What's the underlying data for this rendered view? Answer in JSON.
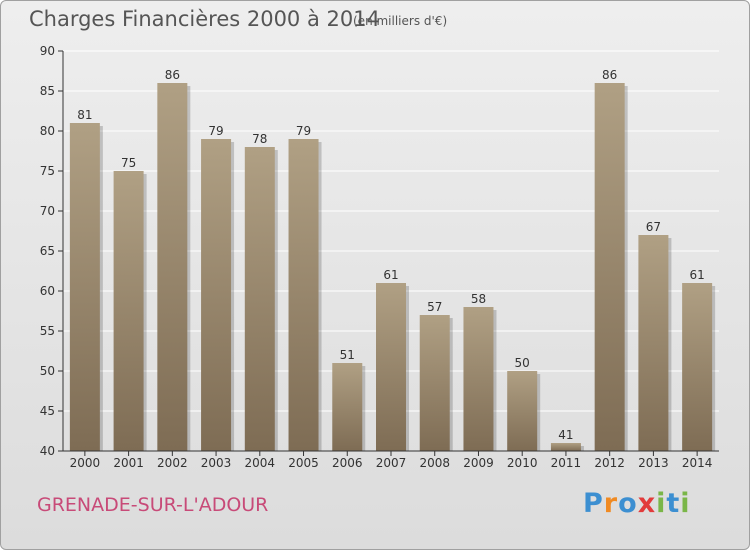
{
  "title": "Charges Financières 2000 à 2014",
  "subtitle": "(en milliers d'€)",
  "city": "GRENADE-SUR-L'ADOUR",
  "logo": {
    "text": "Proxiti",
    "letters": [
      "P",
      "r",
      "o",
      "x",
      "i",
      "t",
      "i"
    ],
    "colors": [
      "#3c8fd1",
      "#f08a22",
      "#3c8fd1",
      "#e23b3b",
      "#7ab648",
      "#3c8fd1",
      "#7ab648"
    ]
  },
  "colors": {
    "bar_light": "#b0a084",
    "bar_dark": "#7e6c54",
    "grid": "#ffffff",
    "axis": "#333333"
  },
  "chart_data": {
    "type": "bar",
    "categories": [
      "2000",
      "2001",
      "2002",
      "2003",
      "2004",
      "2005",
      "2006",
      "2007",
      "2008",
      "2009",
      "2010",
      "2011",
      "2012",
      "2013",
      "2014"
    ],
    "values": [
      81,
      75,
      86,
      79,
      78,
      79,
      51,
      61,
      57,
      58,
      50,
      41,
      86,
      67,
      61
    ],
    "ylim": [
      40,
      90
    ],
    "yticks": [
      40,
      45,
      50,
      55,
      60,
      65,
      70,
      75,
      80,
      85,
      90
    ],
    "grid": true,
    "legend": "none"
  }
}
